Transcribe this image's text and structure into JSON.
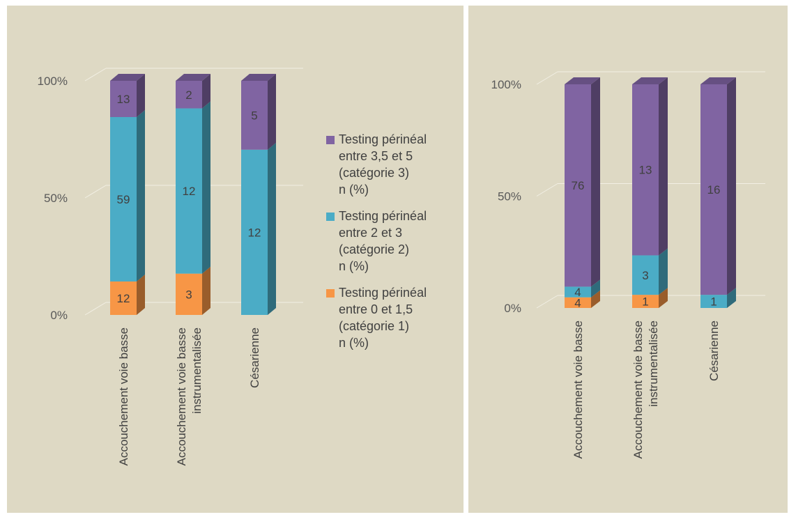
{
  "chart_data": [
    {
      "type": "bar",
      "stacked": "percent",
      "categories": [
        "Accouchement voie basse",
        "Accouchement voie basse instrumentalisée",
        "Césarienne"
      ],
      "series": [
        {
          "name": "Testing périnéal entre 0 et 1,5 (catégorie 1) n (%)",
          "color": "#f79646",
          "values": [
            12,
            3,
            0
          ]
        },
        {
          "name": "Testing périnéal entre 2 et 3 (catégorie 2) n (%)",
          "color": "#4bacc6",
          "values": [
            59,
            12,
            12
          ]
        },
        {
          "name": "Testing périnéal entre 3,5 et 5 (catégorie 3) n (%)",
          "color": "#8064a2",
          "values": [
            13,
            2,
            5
          ]
        }
      ],
      "data_labels": [
        [
          "12",
          "3",
          ""
        ],
        [
          "59",
          "12",
          "12"
        ],
        [
          "13",
          "2",
          "5"
        ]
      ],
      "y_ticks": [
        "0%",
        "50%",
        "100%"
      ],
      "ylim": [
        0,
        100
      ],
      "grid": true,
      "legend": "right",
      "title": "",
      "xlabel": "",
      "ylabel": ""
    },
    {
      "type": "bar",
      "stacked": "percent",
      "categories": [
        "Accouchement voie basse",
        "Accouchement voie basse instrumentalisée",
        "Césarienne"
      ],
      "series": [
        {
          "name": "Testing périnéal entre 0 et 1,5 (catégorie 1) n (%)",
          "color": "#f79646",
          "values": [
            4,
            1,
            0
          ]
        },
        {
          "name": "Testing périnéal entre 2 et 3 (catégorie 2) n (%)",
          "color": "#4bacc6",
          "values": [
            4,
            3,
            1
          ]
        },
        {
          "name": "Testing périnéal entre 3,5 et 5 (catégorie 3) n (%)",
          "color": "#8064a2",
          "values": [
            76,
            13,
            16
          ]
        }
      ],
      "data_labels": [
        [
          "4",
          "1",
          ""
        ],
        [
          "4",
          "3",
          "1"
        ],
        [
          "76",
          "13",
          "16"
        ]
      ],
      "y_ticks": [
        "0%",
        "50%",
        "100%"
      ],
      "ylim": [
        0,
        100
      ],
      "grid": true,
      "legend": "none",
      "title": "",
      "xlabel": "",
      "ylabel": ""
    }
  ],
  "legend": [
    {
      "label": "Testing périnéal\nentre 3,5 et 5\n(catégorie 3)\nn (%)",
      "color": "#8064a2"
    },
    {
      "label": "Testing périnéal\nentre 2 et 3\n(catégorie 2)\nn (%)",
      "color": "#4bacc6"
    },
    {
      "label": "Testing périnéal\nentre 0 et 1,5\n(catégorie 1)\nn (%)",
      "color": "#f79646"
    }
  ]
}
